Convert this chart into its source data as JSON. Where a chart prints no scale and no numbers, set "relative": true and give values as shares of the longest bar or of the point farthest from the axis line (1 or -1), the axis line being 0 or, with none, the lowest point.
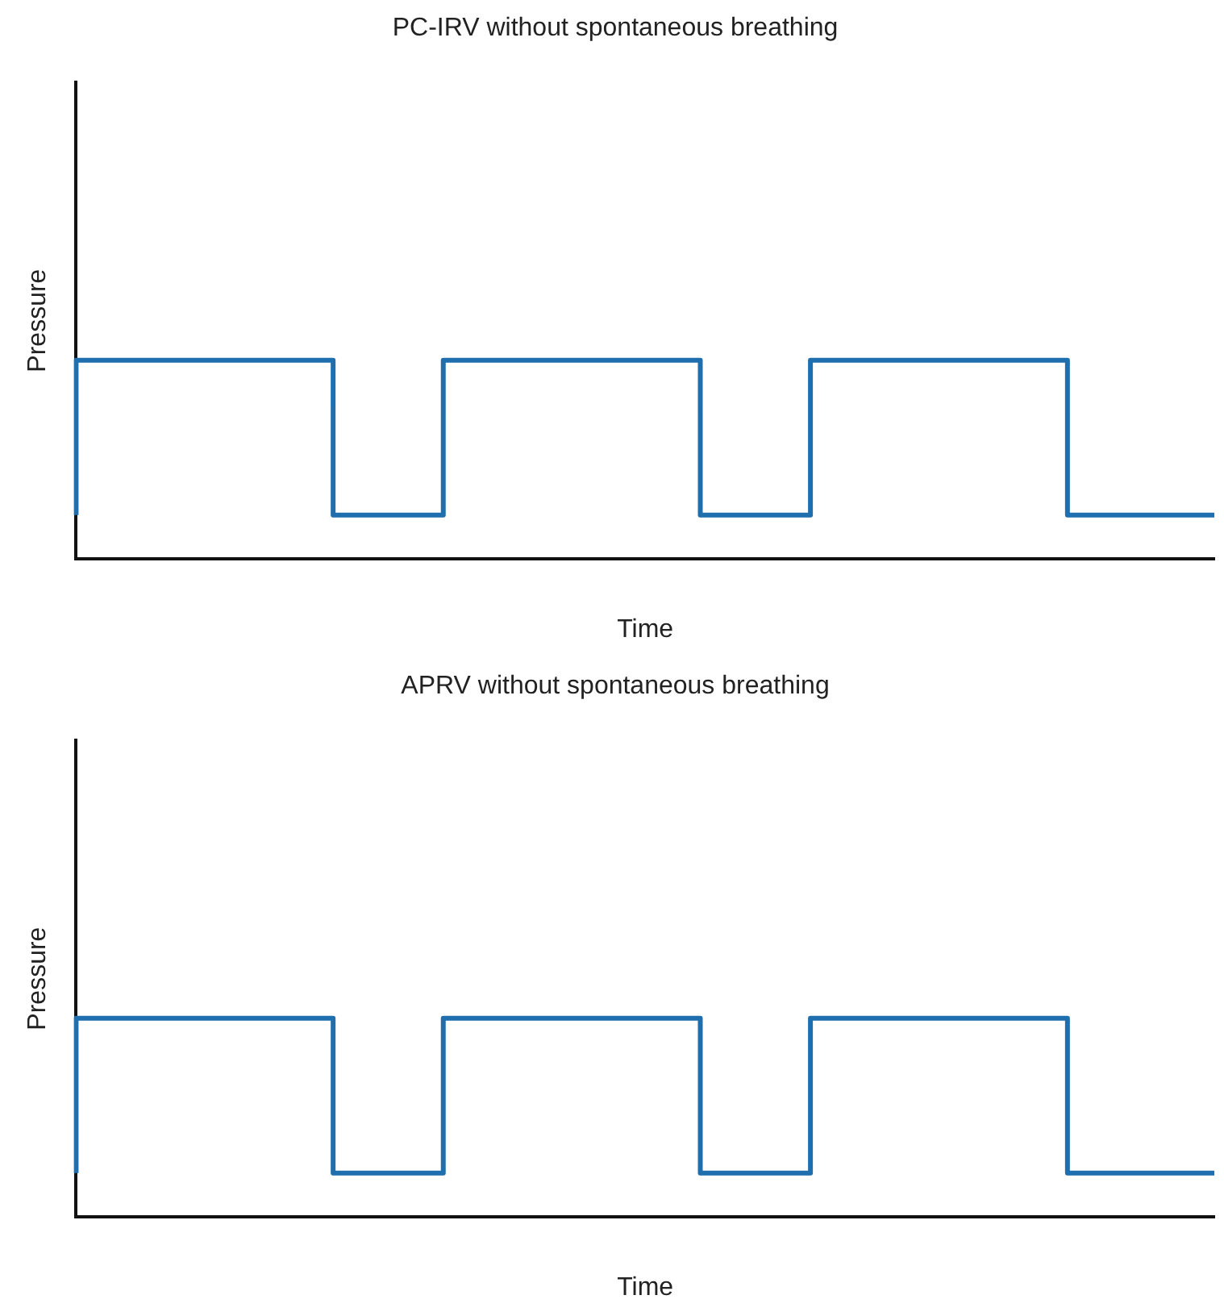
{
  "chart_data": [
    {
      "type": "step",
      "title": "PC-IRV without spontaneous breathing",
      "xlabel": "Time",
      "ylabel": "Pressure",
      "relative": true,
      "legend": false,
      "grid": false,
      "marker": "none",
      "categories": [
        null,
        null,
        null,
        null,
        null,
        null,
        null,
        null,
        null,
        null,
        null,
        null,
        null,
        null,
        null,
        null,
        null,
        null,
        null,
        null,
        null,
        null,
        null,
        null,
        null,
        null,
        null,
        null,
        null,
        null,
        null,
        null
      ],
      "series": [
        {
          "color": "#1f6fae",
          "values": [
            0.22,
            1,
            1,
            1,
            1,
            1,
            1,
            1,
            0.22,
            0.22,
            0.22,
            1,
            1,
            1,
            1,
            1,
            1,
            1,
            0.22,
            0.22,
            0.22,
            1,
            1,
            1,
            1,
            1,
            1,
            1,
            0.22,
            0.22,
            0.22,
            0.22
          ]
        }
      ]
    },
    {
      "type": "step",
      "title": "APRV without spontaneous breathing",
      "xlabel": "Time",
      "ylabel": "Pressure",
      "relative": true,
      "legend": false,
      "grid": false,
      "marker": "none",
      "categories": [
        null,
        null,
        null,
        null,
        null,
        null,
        null,
        null,
        null,
        null,
        null,
        null,
        null,
        null,
        null,
        null,
        null,
        null,
        null,
        null,
        null,
        null,
        null,
        null,
        null,
        null,
        null,
        null,
        null,
        null,
        null,
        null
      ],
      "series": [
        {
          "color": "#1f6fae",
          "values": [
            0.22,
            1,
            1,
            1,
            1,
            1,
            1,
            1,
            0.22,
            0.22,
            0.22,
            1,
            1,
            1,
            1,
            1,
            1,
            1,
            0.22,
            0.22,
            0.22,
            1,
            1,
            1,
            1,
            1,
            1,
            1,
            0.22,
            0.22,
            0.22,
            0.22
          ]
        }
      ]
    }
  ]
}
